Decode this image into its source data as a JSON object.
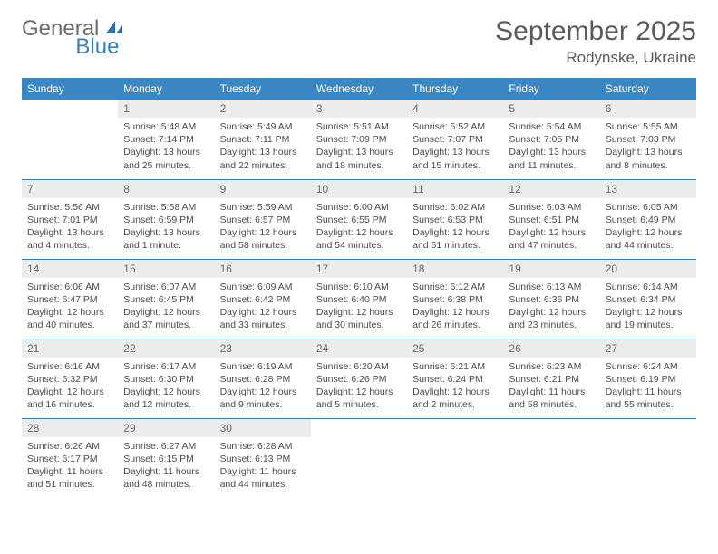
{
  "logo": {
    "general": "General",
    "blue": "Blue"
  },
  "title": "September 2025",
  "location": "Rodynske, Ukraine",
  "colors": {
    "header_bg": "#3a87c4",
    "header_text": "#ffffff",
    "daynum_bg": "#ececec",
    "border": "#3a7fb5",
    "logo_gray": "#6b6b6b",
    "logo_blue": "#3a7fb5"
  },
  "weekdays": [
    "Sunday",
    "Monday",
    "Tuesday",
    "Wednesday",
    "Thursday",
    "Friday",
    "Saturday"
  ],
  "weeks": [
    [
      null,
      {
        "n": "1",
        "sr": "5:48 AM",
        "ss": "7:14 PM",
        "dl": "13 hours and 25 minutes."
      },
      {
        "n": "2",
        "sr": "5:49 AM",
        "ss": "7:11 PM",
        "dl": "13 hours and 22 minutes."
      },
      {
        "n": "3",
        "sr": "5:51 AM",
        "ss": "7:09 PM",
        "dl": "13 hours and 18 minutes."
      },
      {
        "n": "4",
        "sr": "5:52 AM",
        "ss": "7:07 PM",
        "dl": "13 hours and 15 minutes."
      },
      {
        "n": "5",
        "sr": "5:54 AM",
        "ss": "7:05 PM",
        "dl": "13 hours and 11 minutes."
      },
      {
        "n": "6",
        "sr": "5:55 AM",
        "ss": "7:03 PM",
        "dl": "13 hours and 8 minutes."
      }
    ],
    [
      {
        "n": "7",
        "sr": "5:56 AM",
        "ss": "7:01 PM",
        "dl": "13 hours and 4 minutes."
      },
      {
        "n": "8",
        "sr": "5:58 AM",
        "ss": "6:59 PM",
        "dl": "13 hours and 1 minute."
      },
      {
        "n": "9",
        "sr": "5:59 AM",
        "ss": "6:57 PM",
        "dl": "12 hours and 58 minutes."
      },
      {
        "n": "10",
        "sr": "6:00 AM",
        "ss": "6:55 PM",
        "dl": "12 hours and 54 minutes."
      },
      {
        "n": "11",
        "sr": "6:02 AM",
        "ss": "6:53 PM",
        "dl": "12 hours and 51 minutes."
      },
      {
        "n": "12",
        "sr": "6:03 AM",
        "ss": "6:51 PM",
        "dl": "12 hours and 47 minutes."
      },
      {
        "n": "13",
        "sr": "6:05 AM",
        "ss": "6:49 PM",
        "dl": "12 hours and 44 minutes."
      }
    ],
    [
      {
        "n": "14",
        "sr": "6:06 AM",
        "ss": "6:47 PM",
        "dl": "12 hours and 40 minutes."
      },
      {
        "n": "15",
        "sr": "6:07 AM",
        "ss": "6:45 PM",
        "dl": "12 hours and 37 minutes."
      },
      {
        "n": "16",
        "sr": "6:09 AM",
        "ss": "6:42 PM",
        "dl": "12 hours and 33 minutes."
      },
      {
        "n": "17",
        "sr": "6:10 AM",
        "ss": "6:40 PM",
        "dl": "12 hours and 30 minutes."
      },
      {
        "n": "18",
        "sr": "6:12 AM",
        "ss": "6:38 PM",
        "dl": "12 hours and 26 minutes."
      },
      {
        "n": "19",
        "sr": "6:13 AM",
        "ss": "6:36 PM",
        "dl": "12 hours and 23 minutes."
      },
      {
        "n": "20",
        "sr": "6:14 AM",
        "ss": "6:34 PM",
        "dl": "12 hours and 19 minutes."
      }
    ],
    [
      {
        "n": "21",
        "sr": "6:16 AM",
        "ss": "6:32 PM",
        "dl": "12 hours and 16 minutes."
      },
      {
        "n": "22",
        "sr": "6:17 AM",
        "ss": "6:30 PM",
        "dl": "12 hours and 12 minutes."
      },
      {
        "n": "23",
        "sr": "6:19 AM",
        "ss": "6:28 PM",
        "dl": "12 hours and 9 minutes."
      },
      {
        "n": "24",
        "sr": "6:20 AM",
        "ss": "6:26 PM",
        "dl": "12 hours and 5 minutes."
      },
      {
        "n": "25",
        "sr": "6:21 AM",
        "ss": "6:24 PM",
        "dl": "12 hours and 2 minutes."
      },
      {
        "n": "26",
        "sr": "6:23 AM",
        "ss": "6:21 PM",
        "dl": "11 hours and 58 minutes."
      },
      {
        "n": "27",
        "sr": "6:24 AM",
        "ss": "6:19 PM",
        "dl": "11 hours and 55 minutes."
      }
    ],
    [
      {
        "n": "28",
        "sr": "6:26 AM",
        "ss": "6:17 PM",
        "dl": "11 hours and 51 minutes."
      },
      {
        "n": "29",
        "sr": "6:27 AM",
        "ss": "6:15 PM",
        "dl": "11 hours and 48 minutes."
      },
      {
        "n": "30",
        "sr": "6:28 AM",
        "ss": "6:13 PM",
        "dl": "11 hours and 44 minutes."
      },
      null,
      null,
      null,
      null
    ]
  ],
  "labels": {
    "sunrise": "Sunrise:",
    "sunset": "Sunset:",
    "daylight": "Daylight:"
  }
}
